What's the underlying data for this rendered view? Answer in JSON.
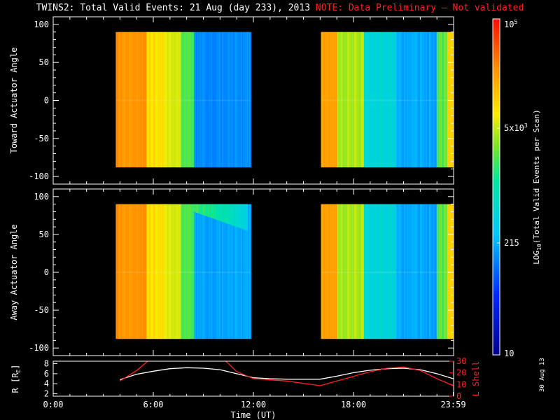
{
  "title": {
    "main": "TWINS2: Total Valid Events: 21 Aug (day 233), 2013",
    "note": "NOTE: Data Preliminary — Not validated"
  },
  "date_stamp": "30 Aug 13",
  "colors": {
    "background": "#000000",
    "axis": "#ffffff",
    "note": "#ff2020",
    "lshell": "#ff2020",
    "radius_line": "#ffffff"
  },
  "chart_data": [
    {
      "type": "heatmap",
      "panel": "toward",
      "ylabel": "Toward Actuator Angle",
      "xlim": [
        0,
        24
      ],
      "ylim": [
        -110,
        110
      ],
      "yticks": [
        100,
        50,
        0,
        -50,
        -100
      ],
      "angle_range": [
        -88,
        90
      ],
      "data_segments": [
        [
          3.75,
          11.85
        ],
        [
          16.05,
          23.95
        ]
      ]
    },
    {
      "type": "heatmap",
      "panel": "away",
      "ylabel": "Away Actuator Angle",
      "xlim": [
        0,
        24
      ],
      "ylim": [
        -110,
        110
      ],
      "yticks": [
        100,
        50,
        0,
        -50,
        -100
      ],
      "angle_range": [
        -88,
        90
      ],
      "data_segments": [
        [
          3.75,
          11.85
        ],
        [
          16.05,
          23.95
        ]
      ]
    },
    {
      "type": "line",
      "panel": "orbit",
      "ylabel": "R [R",
      "ylabel_sub": "E",
      "ylabel_close": "]",
      "y2label": "L Shell",
      "xlabel": "Time (UT)",
      "xlim": [
        0,
        24
      ],
      "ylim": [
        1.5,
        8.5
      ],
      "yticks": [
        8,
        6,
        4,
        2
      ],
      "y2lim": [
        0,
        30
      ],
      "y2ticks": [
        30,
        20,
        10,
        0
      ],
      "xticks": [
        0,
        6,
        12,
        18,
        23.98
      ],
      "xtick_labels": [
        "0:00",
        "6:00",
        "12:00",
        "18:00",
        "23:59"
      ],
      "series": [
        {
          "axis": "left",
          "x": [
            4.0,
            5.0,
            6.0,
            7.0,
            8.0,
            9.0,
            10.0,
            11.0,
            12.0,
            13.0,
            14.0,
            15.0,
            16.0,
            17.0,
            18.0,
            19.0,
            20.0,
            21.0,
            22.0,
            23.0,
            23.98
          ],
          "y": [
            4.8,
            5.9,
            6.5,
            7.0,
            7.2,
            7.1,
            6.8,
            6.0,
            5.2,
            5.0,
            4.9,
            4.9,
            4.9,
            5.5,
            6.2,
            6.7,
            7.0,
            7.1,
            6.8,
            6.0,
            5.0
          ]
        },
        {
          "axis": "right",
          "x": [
            4.0,
            5.0,
            5.5,
            6.0,
            10.0,
            10.5,
            11.0,
            12.0,
            14.0,
            16.0,
            17.0,
            18.0,
            19.0,
            20.0,
            21.0,
            22.0,
            23.0,
            23.98
          ],
          "y": [
            13,
            22,
            28,
            34,
            34,
            28,
            21,
            15,
            13,
            9,
            13,
            17,
            21,
            24,
            25,
            22,
            15,
            9
          ]
        }
      ]
    }
  ],
  "colorbar": {
    "label_prefix": "LOG",
    "label_sub": "10",
    "label_rest": "(Total Valid Events per Scan)",
    "scale": "log",
    "range": [
      10,
      100000
    ],
    "ticks": [
      {
        "value": 100000,
        "label": "10",
        "sup": "5"
      },
      {
        "value": 5000,
        "label": "5x10",
        "sup": "3"
      },
      {
        "value": 215,
        "label": "215",
        "sup": ""
      },
      {
        "value": 10,
        "label": "10",
        "sup": ""
      }
    ]
  }
}
